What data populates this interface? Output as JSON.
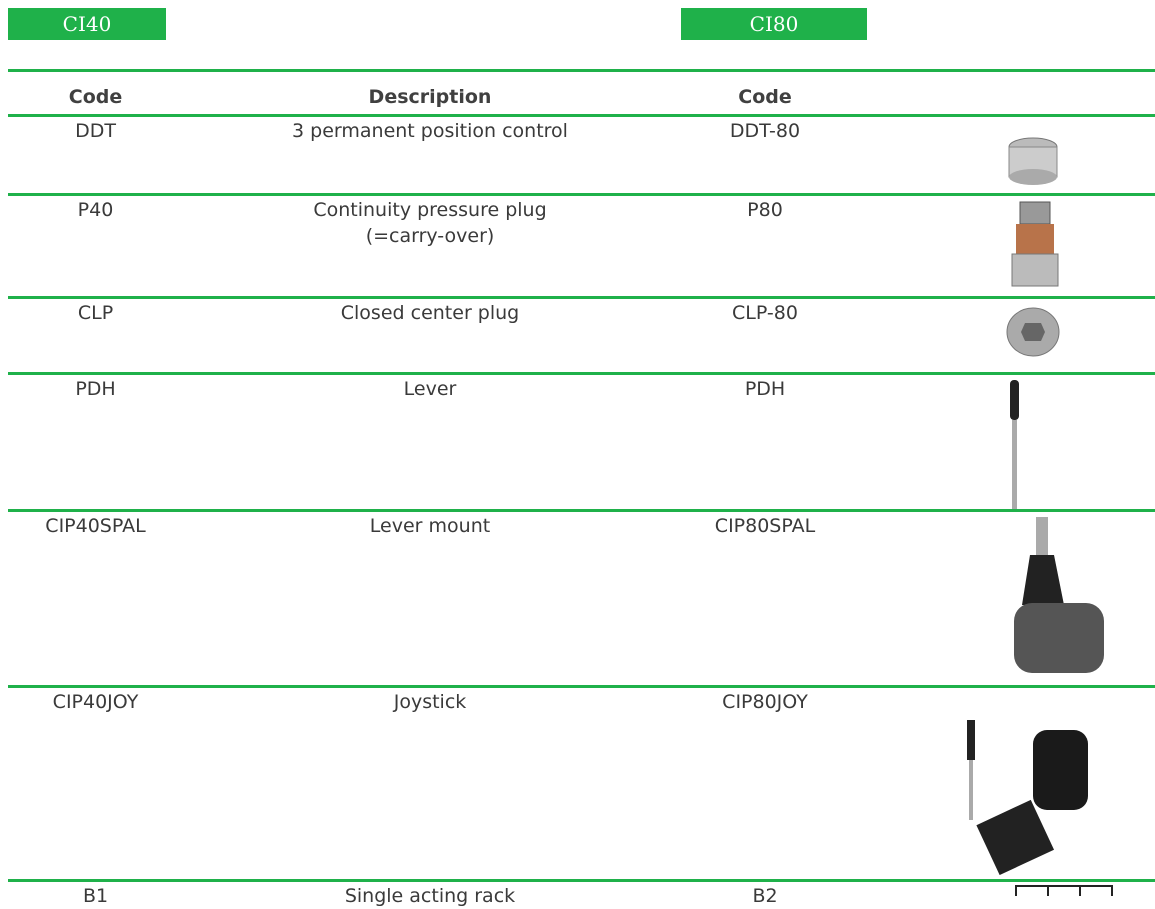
{
  "sections": {
    "left": "CI40",
    "right": "CI80"
  },
  "table": {
    "headers": [
      "Code",
      "Description",
      "Code"
    ],
    "rows": [
      [
        "DDT",
        "3 permanent position control",
        "DDT-80"
      ],
      [
        "P40",
        "Continuity pressure plug\n(=carry-over)",
        "P80"
      ],
      [
        "CLP",
        "Closed center plug",
        "CLP-80"
      ],
      [
        "PDH",
        "Lever",
        "PDH"
      ],
      [
        "CIP40SPAL",
        "Lever mount",
        "CIP80SPAL"
      ],
      [
        "CIP40JOY",
        "Joystick",
        "CIP80JOY"
      ],
      [
        "B1",
        "Single acting rack",
        "B2"
      ]
    ]
  }
}
